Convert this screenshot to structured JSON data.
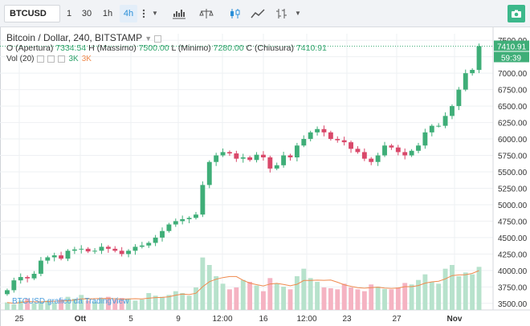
{
  "toolbar": {
    "symbol": "BTCUSD",
    "intervals": [
      "1",
      "30",
      "1h",
      "4h"
    ],
    "active_interval": "4h"
  },
  "legend": {
    "title": "Bitcoin / Dollar, 240, BITSTAMP",
    "open_label": "O (Apertura)",
    "open_value": "7334.54",
    "high_label": "H (Massimo)",
    "high_value": "7500.00",
    "low_label": "L (Minimo)",
    "low_value": "7280.00",
    "close_label": "C (Chiusura)",
    "close_value": "7410.91",
    "vol_label": "Vol (20)",
    "vol_a": "3K",
    "vol_b": "3K"
  },
  "watermark": "BTCUSD grafico da TradingView",
  "colors": {
    "up": "#3fae78",
    "down": "#d9486a",
    "vol_up": "#b7e2cc",
    "vol_down": "#f5b3c2",
    "ma": "#ef8a4e",
    "accent": "#2a8fd8"
  },
  "chart_data": {
    "type": "candlestick",
    "title": "Bitcoin / Dollar, 240, BITSTAMP",
    "ylim": [
      3400,
      7600
    ],
    "y_ticks": [
      3500,
      3750,
      4000,
      4250,
      4500,
      4750,
      5000,
      5250,
      5500,
      5750,
      6000,
      6250,
      6500,
      6750,
      7000,
      7250,
      7500
    ],
    "x_ticks": [
      "25",
      "Ott",
      "5",
      "9",
      "12:00",
      "16",
      "12:00",
      "23",
      "27",
      "Nov"
    ],
    "last_price_label": "7410.91",
    "countdown_label": "59:39",
    "close_series": [
      3700,
      3850,
      3900,
      3880,
      3950,
      4150,
      4200,
      4230,
      4180,
      4300,
      4320,
      4330,
      4290,
      4300,
      4360,
      4330,
      4300,
      4250,
      4300,
      4360,
      4380,
      4420,
      4500,
      4600,
      4700,
      4750,
      4780,
      4800,
      4850,
      5300,
      5650,
      5750,
      5800,
      5780,
      5700,
      5720,
      5680,
      5760,
      5720,
      5550,
      5600,
      5750,
      5720,
      5900,
      6000,
      6100,
      6150,
      6100,
      6000,
      5980,
      5950,
      5850,
      5800,
      5700,
      5650,
      5750,
      5900,
      5870,
      5800,
      5750,
      5820,
      5900,
      6100,
      6200,
      6200,
      6350,
      6500,
      6750,
      7000,
      7050,
      7410.91
    ],
    "volume_series": [
      20,
      15,
      25,
      30,
      18,
      22,
      25,
      20,
      28,
      35,
      30,
      40,
      25,
      22,
      30,
      35,
      28,
      32,
      30,
      25,
      28,
      45,
      38,
      35,
      40,
      50,
      45,
      38,
      60,
      140,
      120,
      90,
      70,
      55,
      60,
      80,
      75,
      65,
      50,
      85,
      70,
      62,
      55,
      90,
      110,
      85,
      75,
      60,
      58,
      55,
      70,
      60,
      55,
      50,
      68,
      62,
      56,
      55,
      60,
      72,
      68,
      80,
      95,
      75,
      70,
      110,
      120,
      90,
      100,
      95,
      115
    ]
  }
}
